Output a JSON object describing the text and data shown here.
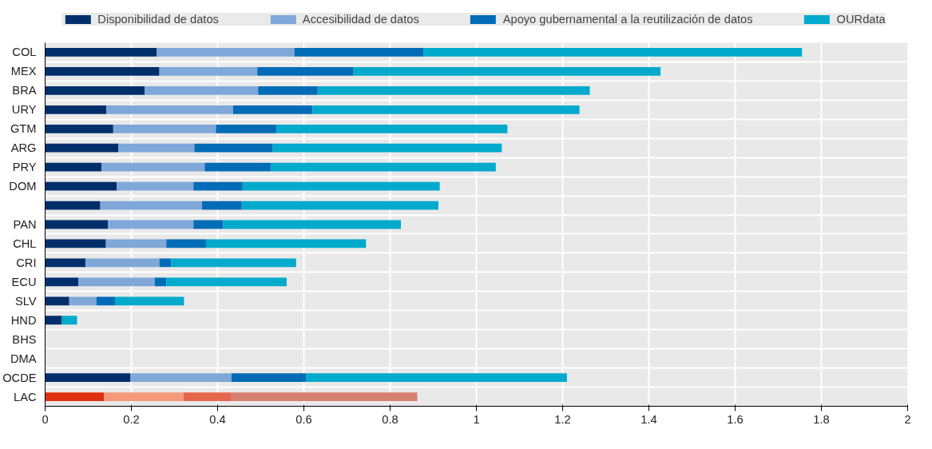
{
  "chart_data": {
    "type": "bar",
    "orientation": "horizontal",
    "stacked": true,
    "grid": true,
    "legend": "top",
    "categories": [
      "COL",
      "MEX",
      "BRA",
      "URY",
      "GTM",
      "ARG",
      "PRY",
      "DOM",
      null,
      "PAN",
      "CHL",
      "CRI",
      "ECU",
      "SLV",
      "HND",
      "BHS",
      "DMA",
      "OCDE",
      "LAC"
    ],
    "xlim": [
      0,
      2
    ],
    "xticks": [
      0,
      0.2,
      0.4,
      0.6,
      0.8,
      1,
      1.2,
      1.4,
      1.6,
      1.8,
      2
    ],
    "series": [
      {
        "name": "Disponibilidad de datos",
        "color": "#002f6c",
        "values": [
          0.259,
          0.265,
          0.231,
          0.142,
          0.158,
          0.17,
          0.131,
          0.166,
          0.128,
          0.146,
          0.141,
          0.094,
          0.077,
          0.056,
          0.038,
          null,
          null,
          0.198,
          0.137
        ],
        "colors": [
          "#002f6c",
          "#002f6c",
          "#002f6c",
          "#002f6c",
          "#002f6c",
          "#002f6c",
          "#002f6c",
          "#002f6c",
          "#002f6c",
          "#002f6c",
          "#002f6c",
          "#002f6c",
          "#002f6c",
          "#002f6c",
          "#002f6c",
          "#002f6c",
          "#002f6c",
          "#002f6c",
          "#e03010"
        ]
      },
      {
        "name": "Accesibilidad de datos",
        "color": "#7fa8d9",
        "values": [
          0.319,
          0.227,
          0.263,
          0.294,
          0.238,
          0.176,
          0.239,
          0.178,
          0.236,
          0.198,
          0.14,
          0.171,
          0.177,
          0.063,
          0,
          null,
          null,
          0.234,
          0.184
        ],
        "colors": [
          "#7fa8d9",
          "#7fa8d9",
          "#7fa8d9",
          "#7fa8d9",
          "#7fa8d9",
          "#7fa8d9",
          "#7fa8d9",
          "#7fa8d9",
          "#7fa8d9",
          "#7fa8d9",
          "#7fa8d9",
          "#7fa8d9",
          "#7fa8d9",
          "#7fa8d9",
          "#7fa8d9",
          "#7fa8d9",
          "#7fa8d9",
          "#7fa8d9",
          "#f4997a"
        ]
      },
      {
        "name": "Apoyo gubernamental a la reutilización de datos",
        "color": "#006bb6",
        "values": [
          0.299,
          0.222,
          0.138,
          0.184,
          0.141,
          0.182,
          0.153,
          0.114,
          0.092,
          0.069,
          0.092,
          0.027,
          0.027,
          0.043,
          0,
          null,
          null,
          0.173,
          0.111
        ],
        "colors": [
          "#006bb6",
          "#006bb6",
          "#006bb6",
          "#006bb6",
          "#006bb6",
          "#006bb6",
          "#006bb6",
          "#006bb6",
          "#006bb6",
          "#006bb6",
          "#006bb6",
          "#006bb6",
          "#006bb6",
          "#006bb6",
          "#006bb6",
          "#006bb6",
          "#006bb6",
          "#006bb6",
          "#e5664b"
        ]
      },
      {
        "name": "OURdata",
        "color": "#00aacc",
        "values": [
          0.878,
          0.713,
          0.631,
          0.619,
          0.535,
          0.531,
          0.522,
          0.457,
          0.456,
          0.412,
          0.371,
          0.29,
          0.279,
          0.16,
          0.036,
          null,
          null,
          0.605,
          0.431
        ],
        "colors": [
          "#00aacc",
          "#00aacc",
          "#00aacc",
          "#00aacc",
          "#00aacc",
          "#00aacc",
          "#00aacc",
          "#00aacc",
          "#00aacc",
          "#00aacc",
          "#00aacc",
          "#00aacc",
          "#00aacc",
          "#00aacc",
          "#00aacc",
          "#00aacc",
          "#00aacc",
          "#00aacc",
          "#d58070"
        ]
      }
    ]
  }
}
